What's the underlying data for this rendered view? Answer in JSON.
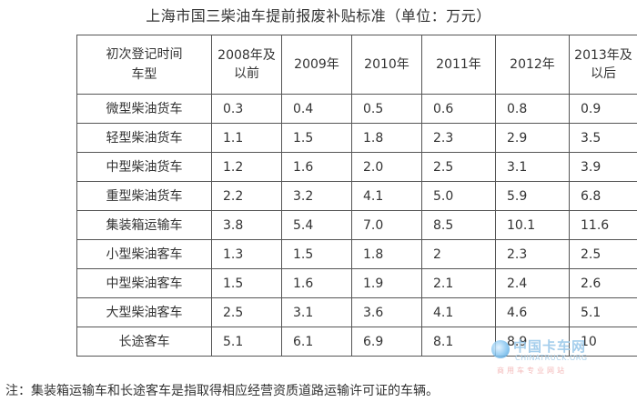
{
  "title": "上海市国三柴油车提前报废补贴标准（单位：万元）",
  "table": {
    "corner_top": "初次登记时间",
    "corner_bottom": "车型",
    "years": [
      "2008年及以前",
      "2009年",
      "2010年",
      "2011年",
      "2012年",
      "2013年及以后"
    ],
    "rows": [
      {
        "type": "微型柴油货车",
        "values": [
          "0.3",
          "0.4",
          "0.5",
          "0.6",
          "0.8",
          "0.9"
        ]
      },
      {
        "type": "轻型柴油货车",
        "values": [
          "1.1",
          "1.5",
          "1.8",
          "2.3",
          "2.9",
          "3.5"
        ]
      },
      {
        "type": "中型柴油货车",
        "values": [
          "1.2",
          "1.6",
          "2.0",
          "2.5",
          "3.1",
          "3.9"
        ]
      },
      {
        "type": "重型柴油货车",
        "values": [
          "2.2",
          "3.2",
          "4.1",
          "5.0",
          "5.9",
          "6.8"
        ]
      },
      {
        "type": "集装箱运输车",
        "values": [
          "3.8",
          "5.4",
          "7.0",
          "8.5",
          "10.1",
          "11.6"
        ]
      },
      {
        "type": "小型柴油客车",
        "values": [
          "1.3",
          "1.5",
          "1.8",
          "2",
          "2.3",
          "2.5"
        ]
      },
      {
        "type": "中型柴油客车",
        "values": [
          "1.5",
          "1.6",
          "1.9",
          "2.1",
          "2.4",
          "2.6"
        ]
      },
      {
        "type": "大型柴油客车",
        "values": [
          "2.5",
          "3.1",
          "3.6",
          "4.1",
          "4.6",
          "5.1"
        ]
      },
      {
        "type": "长途客车",
        "values": [
          "5.1",
          "6.1",
          "6.9",
          "8.1",
          "8.9",
          "10"
        ]
      }
    ]
  },
  "note": "注：集装箱运输车和长途客车是指取得相应经营资质道路运输许可证的车辆。",
  "watermark": {
    "main": "中国卡车网",
    "sub": "CHINATRUCK.ORG",
    "tag": "商用车专业网站"
  }
}
